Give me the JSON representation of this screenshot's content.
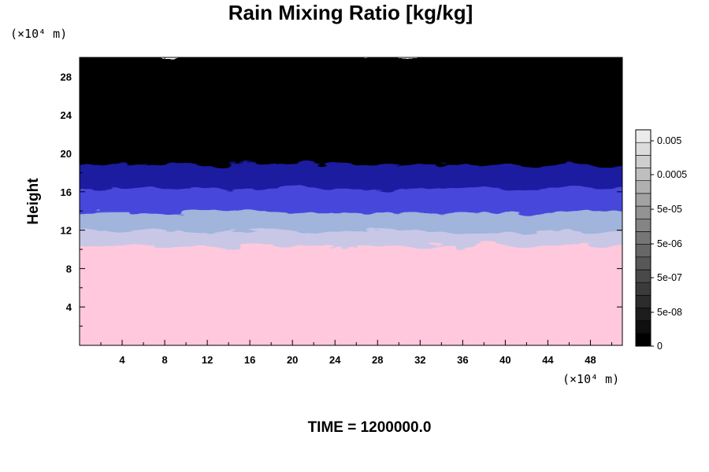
{
  "chart_data": {
    "type": "heatmap",
    "title": "Rain Mixing Ratio [kg/kg]",
    "ylabel": "Height",
    "x_unit": "(×10⁴ m)",
    "y_unit": "(×10⁴ m)",
    "xlim": [
      0,
      51
    ],
    "ylim": [
      0,
      30
    ],
    "x_ticks": [
      "4",
      "8",
      "12",
      "16",
      "20",
      "24",
      "28",
      "32",
      "36",
      "40",
      "44",
      "48"
    ],
    "y_ticks": [
      "4",
      "8",
      "12",
      "16",
      "20",
      "24",
      "28"
    ],
    "colorbar": {
      "labels": [
        "0.005",
        "0.0005",
        "5e-05",
        "5e-06",
        "5e-07",
        "5e-08",
        "0"
      ],
      "levels": [
        0,
        5e-08,
        5e-07,
        5e-06,
        5e-05,
        0.0005,
        0.005
      ]
    },
    "field_bands": [
      {
        "from": 0,
        "to": 10.5,
        "color": "#ffc8dc"
      },
      {
        "from": 10.5,
        "to": 12,
        "color": "#c8c8e6"
      },
      {
        "from": 12,
        "to": 14,
        "color": "#a0b4dc"
      },
      {
        "from": 14,
        "to": 16.5,
        "color": "#4646dc"
      },
      {
        "from": 16.5,
        "to": 19,
        "color": "#1c1ca0"
      },
      {
        "from": 19,
        "to": 30,
        "color": "#000000"
      }
    ],
    "footer": "TIME = 1200000.0"
  }
}
